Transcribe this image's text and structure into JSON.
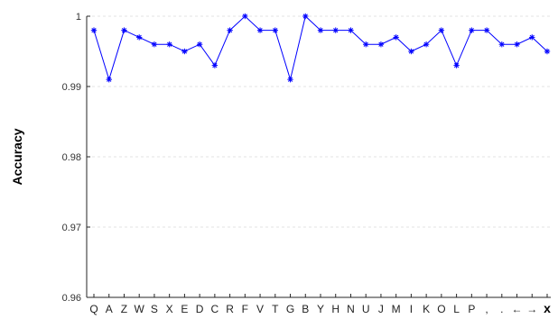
{
  "chart_data": {
    "type": "line",
    "title": "",
    "xlabel": "",
    "ylabel": "Accuracy",
    "ylim": [
      0.96,
      1.0
    ],
    "yticks": [
      0.96,
      0.97,
      0.98,
      0.99,
      1.0
    ],
    "ytick_labels": [
      "0.96",
      "0.97",
      "0.98",
      "0.99",
      "1"
    ],
    "grid": "horizontal-dashed",
    "categories": [
      "Q",
      "A",
      "Z",
      "W",
      "S",
      "X",
      "E",
      "D",
      "C",
      "R",
      "F",
      "V",
      "T",
      "G",
      "B",
      "Y",
      "H",
      "N",
      "U",
      "J",
      "M",
      "I",
      "K",
      "O",
      "L",
      "P",
      ",",
      ".",
      "←",
      "→",
      "x"
    ],
    "series": [
      {
        "marker": "asterisk",
        "color": "#0000ff",
        "values": [
          0.998,
          0.991,
          0.998,
          0.997,
          0.996,
          0.996,
          0.995,
          0.996,
          0.993,
          0.998,
          1.0,
          0.998,
          0.998,
          0.991,
          1.0,
          0.998,
          0.998,
          0.998,
          0.996,
          0.996,
          0.997,
          0.995,
          0.996,
          0.998,
          0.993,
          0.998,
          0.998,
          0.996,
          0.996,
          0.997,
          0.995
        ]
      }
    ]
  }
}
